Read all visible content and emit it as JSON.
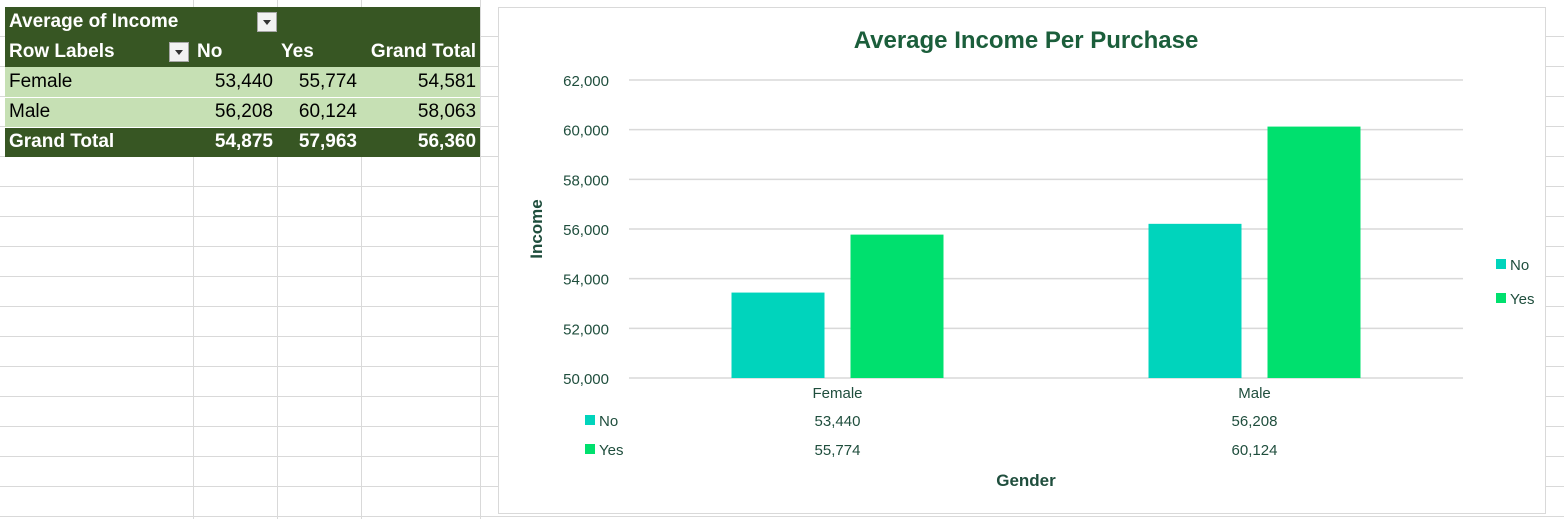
{
  "pivot": {
    "value_field": "Average of Income",
    "row_labels_header": "Row Labels",
    "col_no": "No",
    "col_yes": "Yes",
    "col_total": "Grand Total",
    "rows": [
      {
        "label": "Female",
        "no": "53,440",
        "yes": "55,774",
        "total": "54,581"
      },
      {
        "label": "Male",
        "no": "56,208",
        "yes": "60,124",
        "total": "58,063"
      }
    ],
    "grand_total": {
      "label": "Grand Total",
      "no": "54,875",
      "yes": "57,963",
      "total": "56,360"
    }
  },
  "chart_data": {
    "type": "bar",
    "title": "Average Income Per Purchase",
    "xlabel": "Gender",
    "ylabel": "Income",
    "categories": [
      "Female",
      "Male"
    ],
    "series": [
      {
        "name": "No",
        "values": [
          53440,
          56208
        ],
        "color": "#00d4bc"
      },
      {
        "name": "Yes",
        "values": [
          55774,
          60124
        ],
        "color": "#00e06e"
      }
    ],
    "ylim": [
      50000,
      62000
    ],
    "yticks": [
      50000,
      52000,
      54000,
      56000,
      58000,
      60000,
      62000
    ],
    "ytick_labels": [
      "50,000",
      "52,000",
      "54,000",
      "56,000",
      "58,000",
      "60,000",
      "62,000"
    ],
    "data_table": [
      {
        "series": "No",
        "values": [
          "53,440",
          "56,208"
        ]
      },
      {
        "series": "Yes",
        "values": [
          "55,774",
          "60,124"
        ]
      }
    ],
    "legend": "right",
    "grid": true
  },
  "colors": {
    "header_dark_green": "#375623",
    "band_light_green": "#c6e0b4",
    "chart_text": "#1f4e3d",
    "title_green": "#1b5e3b"
  }
}
